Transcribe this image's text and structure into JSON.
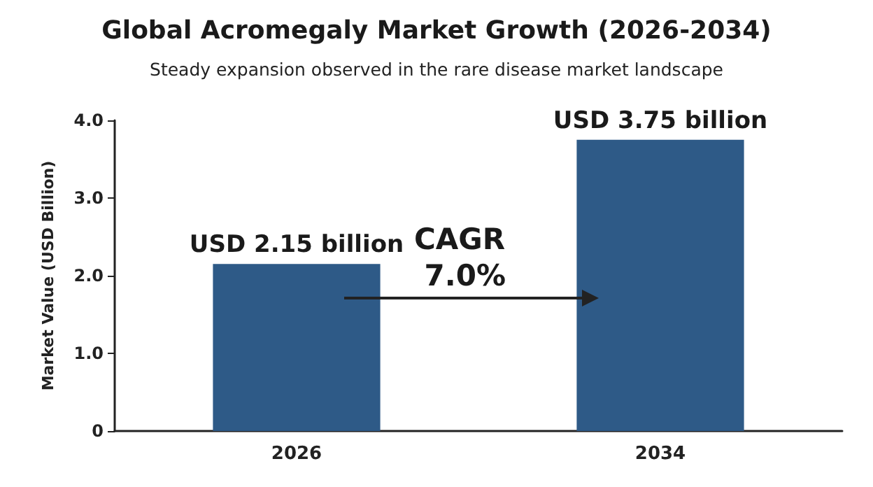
{
  "chart_data": {
    "type": "bar",
    "title": "Global Acromegaly Market Growth (2026-2034)",
    "subtitle": "Steady expansion observed in the rare disease market landscape",
    "ylabel": "Market Value (USD Billion)",
    "categories": [
      "2026",
      "2034"
    ],
    "values": [
      2.15,
      3.75
    ],
    "color": "#2e5a87",
    "value_labels": [
      "USD 2.15 billion",
      "USD 3.75 billion"
    ],
    "ylim": [
      0,
      4
    ],
    "yticks": [
      0,
      {
        "value": 1,
        "label": "1.0"
      },
      {
        "value": 2,
        "label": "2.0"
      },
      {
        "value": 3,
        "label": "3.0"
      },
      {
        "value": 4,
        "label": "4.0"
      }
    ],
    "grid": false,
    "annotations": [
      "CAGR 7.0%"
    ]
  }
}
